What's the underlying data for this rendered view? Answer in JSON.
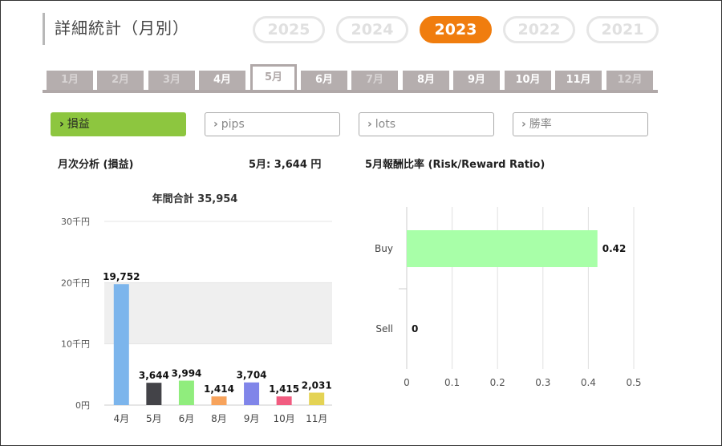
{
  "header": {
    "title": "詳細統計（月別）"
  },
  "years": [
    {
      "label": "2025",
      "active": false
    },
    {
      "label": "2024",
      "active": false
    },
    {
      "label": "2023",
      "active": true
    },
    {
      "label": "2022",
      "active": false
    },
    {
      "label": "2021",
      "active": false
    }
  ],
  "months": [
    {
      "label": "1月",
      "state": "dim"
    },
    {
      "label": "2月",
      "state": "dim"
    },
    {
      "label": "3月",
      "state": "dim"
    },
    {
      "label": "4月",
      "state": "normal"
    },
    {
      "label": "5月",
      "state": "active"
    },
    {
      "label": "6月",
      "state": "normal"
    },
    {
      "label": "7月",
      "state": "dim"
    },
    {
      "label": "8月",
      "state": "normal"
    },
    {
      "label": "9月",
      "state": "normal"
    },
    {
      "label": "10月",
      "state": "normal"
    },
    {
      "label": "11月",
      "state": "normal"
    },
    {
      "label": "12月",
      "state": "dim"
    }
  ],
  "filters": [
    {
      "label": "損益",
      "active": true
    },
    {
      "label": "pips",
      "active": false
    },
    {
      "label": "lots",
      "active": false
    },
    {
      "label": "勝率",
      "active": false
    }
  ],
  "section": {
    "left_title": "月次分析 (損益)",
    "month_summary": "5月:  3,644 円",
    "right_title": "5月報酬比率 (Risk/Reward Ratio)"
  },
  "chart_data": [
    {
      "type": "bar",
      "title": "年間合計 35,954",
      "categories": [
        "4月",
        "5月",
        "6月",
        "8月",
        "9月",
        "10月",
        "11月"
      ],
      "values": [
        19752,
        3644,
        3994,
        1414,
        3704,
        1415,
        2031
      ],
      "value_labels": [
        "19,752",
        "3,644",
        "3,994",
        "1,414",
        "3,704",
        "1,415",
        "2,031"
      ],
      "colors": [
        "#7cb5ec",
        "#434348",
        "#90ed7d",
        "#f7a35c",
        "#8085e9",
        "#f15c80",
        "#e4d354"
      ],
      "ylim": [
        0,
        30000
      ],
      "yticks": [
        {
          "value": 0,
          "label": "0円"
        },
        {
          "value": 10000,
          "label": "10千円"
        },
        {
          "value": 20000,
          "label": "20千円"
        },
        {
          "value": 30000,
          "label": "30千円"
        }
      ],
      "grid": "alternating bands"
    },
    {
      "type": "bar",
      "orientation": "horizontal",
      "categories": [
        "Buy",
        "Sell"
      ],
      "values": [
        0.42,
        0
      ],
      "value_labels": [
        "0.42",
        "0"
      ],
      "color": "#a8ffa8",
      "xlim": [
        0,
        0.5
      ],
      "xticks": [
        "0",
        "0.1",
        "0.2",
        "0.3",
        "0.4",
        "0.5"
      ],
      "grid": true
    }
  ]
}
